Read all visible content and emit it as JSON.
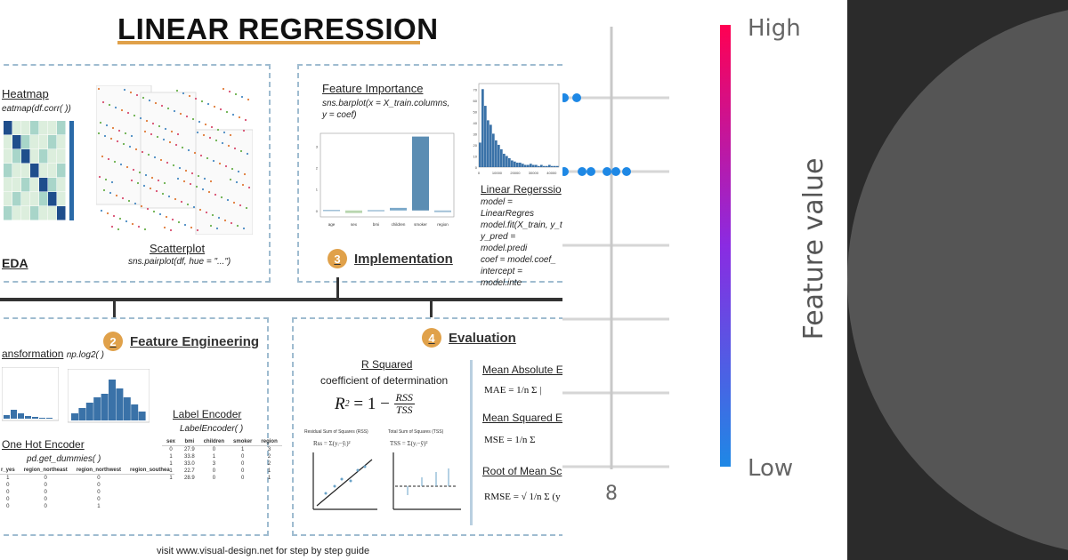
{
  "infographic": {
    "title": "LINEAR REGRESSION",
    "footer": "visit www.visual-design.net for step by step guide",
    "eda": {
      "heatmap_title": "Heatmap",
      "heatmap_code": "eatmap(df.corr( ))",
      "scatterplot_title": "Scatterplot",
      "scatterplot_code": "sns.pairplot(df, hue = \"...\")",
      "section_label": "EDA"
    },
    "implementation": {
      "step_number": "3",
      "step_label": "Implementation",
      "feature_importance_title": "Feature Importance",
      "feature_importance_code_1": "sns.barplot(x = X_train.columns,",
      "feature_importance_code_2": "y = coef)",
      "linear_regression_title": "Linear Regerssio",
      "code_lines": [
        "model = LinearRegres",
        "model.fit(X_train, y_t",
        "y_pred = model.predi",
        "coef = model.coef_",
        "intercept = model.inte"
      ]
    },
    "feature_engineering": {
      "step_number": "2",
      "step_label": "Feature Engineering",
      "transformation_title": "ansformation",
      "transformation_code": "np.log2( )",
      "one_hot_title": "One Hot Encoder",
      "one_hot_code": "pd.get_dummies( )",
      "label_encoder_title": "Label Encoder",
      "label_encoder_code": "LabelEncoder( )",
      "one_hot_headers": [
        "r_yes",
        "region_northeast",
        "region_northwest",
        "region_southea"
      ],
      "one_hot_rows": [
        [
          "1",
          "0",
          "0",
          ""
        ],
        [
          "0",
          "0",
          "0",
          ""
        ],
        [
          "0",
          "0",
          "0",
          ""
        ],
        [
          "0",
          "0",
          "0",
          ""
        ],
        [
          "0",
          "0",
          "1",
          ""
        ]
      ],
      "label_headers": [
        "sex",
        "bmi",
        "children",
        "smoker",
        "region"
      ],
      "label_rows": [
        [
          "0",
          "27.9",
          "0",
          "1",
          "3"
        ],
        [
          "1",
          "33.8",
          "1",
          "0",
          "2"
        ],
        [
          "1",
          "33.0",
          "3",
          "0",
          "2"
        ],
        [
          "1",
          "22.7",
          "0",
          "0",
          "1"
        ],
        [
          "1",
          "28.9",
          "0",
          "0",
          "1"
        ]
      ]
    },
    "evaluation": {
      "step_number": "4",
      "step_label": "Evaluation",
      "r_squared_title": "R Squared",
      "r_squared_sub": "coefficient of determination",
      "r_squared_formula_left": "R",
      "r_squared_formula_mid": " = 1 − ",
      "rss": "RSS",
      "tss": "TSS",
      "rss_caption": "Residual Sum of Squares (RSS)",
      "tss_caption": "Total Sum of Squares (TSS)",
      "mae_title": "Mean Absolute E",
      "mse_title": "Mean Squared E",
      "rmse_title": "Root of Mean Sc",
      "mae_formula": "MAE = 1/n Σ |",
      "mse_formula": "MSE = 1/n Σ",
      "rmse_formula": "RMSE = √ 1/n Σ (y"
    },
    "feature_importance_chart": {
      "type": "bar",
      "categories": [
        "age",
        "sex",
        "bmi",
        "children",
        "smoker",
        "region"
      ],
      "values": [
        0.03,
        -0.12,
        0.02,
        0.12,
        3.45,
        -0.08
      ],
      "ylim": [
        -0.3,
        3.6
      ],
      "yticks": [
        "0",
        "1",
        "2",
        "3"
      ]
    },
    "histogram": {
      "yticks": [
        "0",
        "10",
        "20",
        "30",
        "40",
        "50",
        "60",
        "70"
      ],
      "xticks": [
        "0",
        "10000",
        "20000",
        "30000",
        "40000"
      ]
    }
  },
  "shap": {
    "x_tick": "8",
    "colorbar_high": "High",
    "colorbar_low": "Low",
    "colorbar_label": "Feature value",
    "colors": {
      "high": "#ff0052",
      "low": "#1e88e5"
    }
  },
  "chart_data": {
    "type": "bar",
    "title": "Feature Importance",
    "categories": [
      "age",
      "sex",
      "bmi",
      "children",
      "smoker",
      "region"
    ],
    "values": [
      0.03,
      -0.12,
      0.02,
      0.12,
      3.45,
      -0.08
    ],
    "xlabel": "",
    "ylabel": "",
    "ylim": [
      -0.3,
      3.6
    ]
  }
}
